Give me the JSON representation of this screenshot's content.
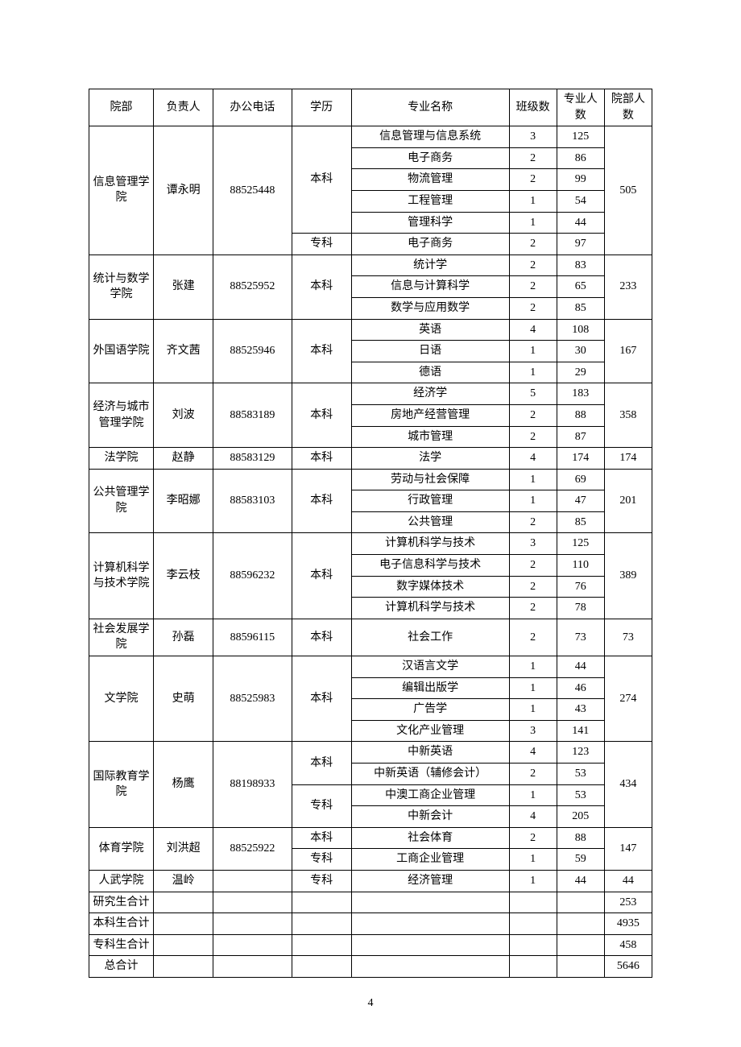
{
  "headers": {
    "dept": "院部",
    "person": "负责人",
    "phone": "办公电话",
    "degree": "学历",
    "major": "专业名称",
    "classnum": "班级数",
    "majornum": "专业人数",
    "deptnum": "院部人数"
  },
  "rows": [
    {
      "dept": "信息管理学院",
      "person": "谭永明",
      "phone": "88525448",
      "degree": "本科",
      "major": "信息管理与信息系统",
      "classnum": "3",
      "majornum": "125",
      "deptnum": "505",
      "deptRowspan": 6,
      "personRowspan": 6,
      "phoneRowspan": 6,
      "degreeRowspan": 5,
      "deptnumRowspan": 6
    },
    {
      "major": "电子商务",
      "classnum": "2",
      "majornum": "86"
    },
    {
      "major": "物流管理",
      "classnum": "2",
      "majornum": "99"
    },
    {
      "major": "工程管理",
      "classnum": "1",
      "majornum": "54"
    },
    {
      "major": "管理科学",
      "classnum": "1",
      "majornum": "44"
    },
    {
      "degree": "专科",
      "major": "电子商务",
      "classnum": "2",
      "majornum": "97",
      "degreeRowspan": 1
    },
    {
      "dept": "统计与数学学院",
      "person": "张建",
      "phone": "88525952",
      "degree": "本科",
      "major": "统计学",
      "classnum": "2",
      "majornum": "83",
      "deptnum": "233",
      "deptRowspan": 3,
      "personRowspan": 3,
      "phoneRowspan": 3,
      "degreeRowspan": 3,
      "deptnumRowspan": 3
    },
    {
      "major": "信息与计算科学",
      "classnum": "2",
      "majornum": "65"
    },
    {
      "major": "数学与应用数学",
      "classnum": "2",
      "majornum": "85"
    },
    {
      "dept": "外国语学院",
      "person": "齐文茜",
      "phone": "88525946",
      "degree": "本科",
      "major": "英语",
      "classnum": "4",
      "majornum": "108",
      "deptnum": "167",
      "deptRowspan": 3,
      "personRowspan": 3,
      "phoneRowspan": 3,
      "degreeRowspan": 3,
      "deptnumRowspan": 3
    },
    {
      "major": "日语",
      "classnum": "1",
      "majornum": "30"
    },
    {
      "major": "德语",
      "classnum": "1",
      "majornum": "29"
    },
    {
      "dept": "经济与城市管理学院",
      "person": "刘波",
      "phone": "88583189",
      "degree": "本科",
      "major": "经济学",
      "classnum": "5",
      "majornum": "183",
      "deptnum": "358",
      "deptRowspan": 3,
      "personRowspan": 3,
      "phoneRowspan": 3,
      "degreeRowspan": 3,
      "deptnumRowspan": 3
    },
    {
      "major": "房地产经营管理",
      "classnum": "2",
      "majornum": "88"
    },
    {
      "major": "城市管理",
      "classnum": "2",
      "majornum": "87"
    },
    {
      "dept": "法学院",
      "person": "赵静",
      "phone": "88583129",
      "degree": "本科",
      "major": "法学",
      "classnum": "4",
      "majornum": "174",
      "deptnum": "174",
      "deptRowspan": 1,
      "personRowspan": 1,
      "phoneRowspan": 1,
      "degreeRowspan": 1,
      "deptnumRowspan": 1
    },
    {
      "dept": "公共管理学院",
      "person": "李昭娜",
      "phone": "88583103",
      "degree": "本科",
      "major": "劳动与社会保障",
      "classnum": "1",
      "majornum": "69",
      "deptnum": "201",
      "deptRowspan": 3,
      "personRowspan": 3,
      "phoneRowspan": 3,
      "degreeRowspan": 3,
      "deptnumRowspan": 3
    },
    {
      "major": "行政管理",
      "classnum": "1",
      "majornum": "47"
    },
    {
      "major": "公共管理",
      "classnum": "2",
      "majornum": "85"
    },
    {
      "dept": "计算机科学与技术学院",
      "person": "李云枝",
      "phone": "88596232",
      "degree": "本科",
      "major": "计算机科学与技术",
      "classnum": "3",
      "majornum": "125",
      "deptnum": "389",
      "deptRowspan": 4,
      "personRowspan": 4,
      "phoneRowspan": 4,
      "degreeRowspan": 4,
      "deptnumRowspan": 4
    },
    {
      "major": "电子信息科学与技术",
      "classnum": "2",
      "majornum": "110"
    },
    {
      "major": "数字媒体技术",
      "classnum": "2",
      "majornum": "76"
    },
    {
      "major": "计算机科学与技术",
      "classnum": "2",
      "majornum": "78"
    },
    {
      "dept": "社会发展学院",
      "person": "孙磊",
      "phone": "88596115",
      "degree": "本科",
      "major": "社会工作",
      "classnum": "2",
      "majornum": "73",
      "deptnum": "73",
      "deptRowspan": 1,
      "personRowspan": 1,
      "phoneRowspan": 1,
      "degreeRowspan": 1,
      "deptnumRowspan": 1
    },
    {
      "dept": "文学院",
      "person": "史萌",
      "phone": "88525983",
      "degree": "本科",
      "major": "汉语言文学",
      "classnum": "1",
      "majornum": "44",
      "deptnum": "274",
      "deptRowspan": 4,
      "personRowspan": 4,
      "phoneRowspan": 4,
      "degreeRowspan": 4,
      "deptnumRowspan": 4
    },
    {
      "major": "编辑出版学",
      "classnum": "1",
      "majornum": "46"
    },
    {
      "major": "广告学",
      "classnum": "1",
      "majornum": "43"
    },
    {
      "major": "文化产业管理",
      "classnum": "3",
      "majornum": "141"
    },
    {
      "dept": "国际教育学院",
      "person": "杨鹰",
      "phone": "88198933",
      "degree": "本科",
      "major": "中新英语",
      "classnum": "4",
      "majornum": "123",
      "deptnum": "434",
      "deptRowspan": 4,
      "personRowspan": 4,
      "phoneRowspan": 4,
      "degreeRowspan": 2,
      "deptnumRowspan": 4
    },
    {
      "major": "中新英语（辅修会计）",
      "classnum": "2",
      "majornum": "53"
    },
    {
      "degree": "专科",
      "major": "中澳工商企业管理",
      "classnum": "1",
      "majornum": "53",
      "degreeRowspan": 2
    },
    {
      "major": "中新会计",
      "classnum": "4",
      "majornum": "205"
    },
    {
      "dept": "体育学院",
      "person": "刘洪超",
      "phone": "88525922",
      "degree": "本科",
      "major": "社会体育",
      "classnum": "2",
      "majornum": "88",
      "deptnum": "147",
      "deptRowspan": 2,
      "personRowspan": 2,
      "phoneRowspan": 2,
      "degreeRowspan": 1,
      "deptnumRowspan": 2
    },
    {
      "degree": "专科",
      "major": "工商企业管理",
      "classnum": "1",
      "majornum": "59",
      "degreeRowspan": 1
    },
    {
      "dept": "人武学院",
      "person": "温岭",
      "phone": "",
      "degree": "专科",
      "major": "经济管理",
      "classnum": "1",
      "majornum": "44",
      "deptnum": "44",
      "deptRowspan": 1,
      "personRowspan": 1,
      "phoneRowspan": 1,
      "degreeRowspan": 1,
      "deptnumRowspan": 1
    },
    {
      "dept": "研究生合计",
      "person": "",
      "phone": "",
      "degree": "",
      "major": "",
      "classnum": "",
      "majornum": "",
      "deptnum": "253",
      "deptRowspan": 1,
      "personRowspan": 1,
      "phoneRowspan": 1,
      "degreeRowspan": 1,
      "deptnumRowspan": 1
    },
    {
      "dept": "本科生合计",
      "person": "",
      "phone": "",
      "degree": "",
      "major": "",
      "classnum": "",
      "majornum": "",
      "deptnum": "4935",
      "deptRowspan": 1,
      "personRowspan": 1,
      "phoneRowspan": 1,
      "degreeRowspan": 1,
      "deptnumRowspan": 1
    },
    {
      "dept": "专科生合计",
      "person": "",
      "phone": "",
      "degree": "",
      "major": "",
      "classnum": "",
      "majornum": "",
      "deptnum": "458",
      "deptRowspan": 1,
      "personRowspan": 1,
      "phoneRowspan": 1,
      "degreeRowspan": 1,
      "deptnumRowspan": 1
    },
    {
      "dept": "总合计",
      "person": "",
      "phone": "",
      "degree": "",
      "major": "",
      "classnum": "",
      "majornum": "",
      "deptnum": "5646",
      "deptRowspan": 1,
      "personRowspan": 1,
      "phoneRowspan": 1,
      "degreeRowspan": 1,
      "deptnumRowspan": 1
    }
  ],
  "pagenum": "4"
}
